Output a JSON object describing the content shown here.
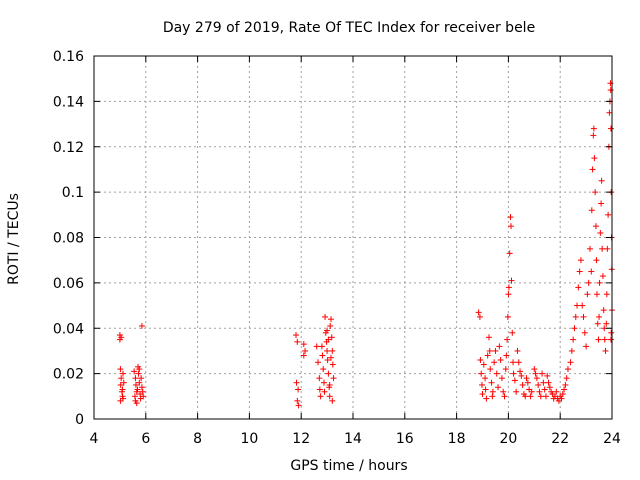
{
  "chart_data": {
    "type": "scatter",
    "title": "Day 279 of 2019, Rate Of TEC Index for receiver bele",
    "xlabel": "GPS time / hours",
    "ylabel": "ROTI / TECUs",
    "xlim": [
      4,
      24
    ],
    "ylim": [
      0,
      0.16
    ],
    "grid": true,
    "marker": "+",
    "marker_color": "#ff0000",
    "xticks": [
      4,
      6,
      8,
      10,
      12,
      14,
      16,
      18,
      20,
      22,
      24
    ],
    "xtick_labels": [
      "4",
      "6",
      "8",
      "10",
      "12",
      "14",
      "16",
      "18",
      "20",
      "22",
      "24"
    ],
    "yticks": [
      0,
      0.02,
      0.04,
      0.06,
      0.08,
      0.1,
      0.12,
      0.14,
      0.16
    ],
    "ytick_labels": [
      "0",
      "0.02",
      "0.04",
      "0.06",
      "0.08",
      "0.1",
      "0.12",
      "0.14",
      "0.16"
    ],
    "series": [
      {
        "name": "ROTI",
        "points": [
          [
            5.0,
            0.037
          ],
          [
            5.0,
            0.035
          ],
          [
            5.02,
            0.022
          ],
          [
            5.05,
            0.018
          ],
          [
            5.03,
            0.015
          ],
          [
            5.08,
            0.012
          ],
          [
            5.1,
            0.01
          ],
          [
            5.02,
            0.008
          ],
          [
            5.12,
            0.02
          ],
          [
            5.15,
            0.016
          ],
          [
            5.05,
            0.036
          ],
          [
            5.1,
            0.013
          ],
          [
            5.12,
            0.009
          ],
          [
            5.55,
            0.021
          ],
          [
            5.6,
            0.018
          ],
          [
            5.62,
            0.015
          ],
          [
            5.65,
            0.012
          ],
          [
            5.58,
            0.01
          ],
          [
            5.7,
            0.023
          ],
          [
            5.72,
            0.02
          ],
          [
            5.75,
            0.016
          ],
          [
            5.68,
            0.013
          ],
          [
            5.78,
            0.011
          ],
          [
            5.8,
            0.009
          ],
          [
            5.65,
            0.007
          ],
          [
            5.82,
            0.018
          ],
          [
            5.85,
            0.014
          ],
          [
            5.88,
            0.012
          ],
          [
            5.9,
            0.01
          ],
          [
            5.85,
            0.041
          ],
          [
            5.75,
            0.022
          ],
          [
            5.6,
            0.008
          ],
          [
            11.8,
            0.037
          ],
          [
            11.85,
            0.034
          ],
          [
            11.82,
            0.016
          ],
          [
            11.88,
            0.013
          ],
          [
            11.85,
            0.008
          ],
          [
            11.9,
            0.006
          ],
          [
            12.1,
            0.033
          ],
          [
            12.15,
            0.03
          ],
          [
            12.1,
            0.028
          ],
          [
            12.6,
            0.032
          ],
          [
            12.65,
            0.025
          ],
          [
            12.7,
            0.018
          ],
          [
            12.72,
            0.013
          ],
          [
            12.75,
            0.01
          ],
          [
            12.8,
            0.032
          ],
          [
            12.82,
            0.028
          ],
          [
            12.85,
            0.022
          ],
          [
            12.88,
            0.016
          ],
          [
            12.9,
            0.012
          ],
          [
            12.92,
            0.045
          ],
          [
            12.95,
            0.038
          ],
          [
            12.98,
            0.034
          ],
          [
            13.0,
            0.03
          ],
          [
            13.02,
            0.026
          ],
          [
            13.05,
            0.02
          ],
          [
            13.08,
            0.014
          ],
          [
            13.1,
            0.01
          ],
          [
            13.12,
            0.041
          ],
          [
            13.15,
            0.044
          ],
          [
            13.18,
            0.036
          ],
          [
            13.2,
            0.03
          ],
          [
            13.22,
            0.024
          ],
          [
            13.25,
            0.018
          ],
          [
            13.2,
            0.008
          ],
          [
            13.1,
            0.015
          ],
          [
            13.15,
            0.027
          ],
          [
            13.05,
            0.035
          ],
          [
            13.0,
            0.039
          ],
          [
            18.85,
            0.047
          ],
          [
            18.9,
            0.045
          ],
          [
            18.92,
            0.026
          ],
          [
            18.95,
            0.02
          ],
          [
            18.98,
            0.015
          ],
          [
            19.0,
            0.011
          ],
          [
            19.05,
            0.024
          ],
          [
            19.1,
            0.018
          ],
          [
            19.12,
            0.013
          ],
          [
            19.15,
            0.009
          ],
          [
            19.2,
            0.028
          ],
          [
            19.25,
            0.036
          ],
          [
            19.28,
            0.03
          ],
          [
            19.3,
            0.022
          ],
          [
            19.35,
            0.016
          ],
          [
            19.38,
            0.01
          ],
          [
            19.4,
            0.012
          ],
          [
            19.45,
            0.025
          ],
          [
            19.5,
            0.03
          ],
          [
            19.55,
            0.02
          ],
          [
            19.6,
            0.014
          ],
          [
            19.65,
            0.032
          ],
          [
            19.7,
            0.026
          ],
          [
            19.75,
            0.018
          ],
          [
            19.8,
            0.012
          ],
          [
            19.85,
            0.01
          ],
          [
            19.9,
            0.022
          ],
          [
            19.92,
            0.028
          ],
          [
            19.95,
            0.035
          ],
          [
            19.98,
            0.045
          ],
          [
            20.0,
            0.055
          ],
          [
            20.02,
            0.058
          ],
          [
            20.05,
            0.073
          ],
          [
            20.08,
            0.089
          ],
          [
            20.1,
            0.085
          ],
          [
            20.12,
            0.061
          ],
          [
            20.15,
            0.038
          ],
          [
            20.18,
            0.025
          ],
          [
            20.2,
            0.02
          ],
          [
            20.25,
            0.017
          ],
          [
            20.3,
            0.012
          ],
          [
            20.35,
            0.03
          ],
          [
            20.4,
            0.025
          ],
          [
            20.45,
            0.021
          ],
          [
            20.5,
            0.019
          ],
          [
            20.55,
            0.015
          ],
          [
            20.6,
            0.011
          ],
          [
            20.65,
            0.01
          ],
          [
            20.7,
            0.018
          ],
          [
            20.75,
            0.016
          ],
          [
            20.8,
            0.013
          ],
          [
            20.85,
            0.01
          ],
          [
            20.9,
            0.012
          ],
          [
            21.0,
            0.022
          ],
          [
            21.05,
            0.02
          ],
          [
            21.1,
            0.018
          ],
          [
            21.15,
            0.015
          ],
          [
            21.2,
            0.012
          ],
          [
            21.25,
            0.01
          ],
          [
            21.3,
            0.02
          ],
          [
            21.35,
            0.016
          ],
          [
            21.4,
            0.013
          ],
          [
            21.45,
            0.01
          ],
          [
            21.5,
            0.019
          ],
          [
            21.55,
            0.016
          ],
          [
            21.6,
            0.014
          ],
          [
            21.65,
            0.012
          ],
          [
            21.7,
            0.011
          ],
          [
            21.75,
            0.009
          ],
          [
            21.8,
            0.01
          ],
          [
            21.85,
            0.012
          ],
          [
            21.9,
            0.009
          ],
          [
            21.95,
            0.008
          ],
          [
            22.0,
            0.01
          ],
          [
            22.05,
            0.009
          ],
          [
            22.1,
            0.011
          ],
          [
            22.15,
            0.013
          ],
          [
            22.2,
            0.015
          ],
          [
            22.25,
            0.018
          ],
          [
            22.3,
            0.022
          ],
          [
            22.4,
            0.025
          ],
          [
            22.45,
            0.03
          ],
          [
            22.5,
            0.035
          ],
          [
            22.55,
            0.04
          ],
          [
            22.6,
            0.045
          ],
          [
            22.65,
            0.05
          ],
          [
            22.7,
            0.058
          ],
          [
            22.75,
            0.065
          ],
          [
            22.8,
            0.07
          ],
          [
            22.85,
            0.05
          ],
          [
            22.9,
            0.045
          ],
          [
            22.95,
            0.038
          ],
          [
            23.0,
            0.032
          ],
          [
            23.05,
            0.055
          ],
          [
            23.1,
            0.06
          ],
          [
            23.15,
            0.075
          ],
          [
            23.2,
            0.065
          ],
          [
            23.22,
            0.092
          ],
          [
            23.25,
            0.11
          ],
          [
            23.28,
            0.125
          ],
          [
            23.3,
            0.128
          ],
          [
            23.32,
            0.115
          ],
          [
            23.35,
            0.1
          ],
          [
            23.38,
            0.085
          ],
          [
            23.4,
            0.07
          ],
          [
            23.42,
            0.055
          ],
          [
            23.45,
            0.042
          ],
          [
            23.48,
            0.035
          ],
          [
            23.5,
            0.045
          ],
          [
            23.52,
            0.06
          ],
          [
            23.55,
            0.082
          ],
          [
            23.58,
            0.095
          ],
          [
            23.6,
            0.105
          ],
          [
            23.62,
            0.075
          ],
          [
            23.65,
            0.063
          ],
          [
            23.68,
            0.048
          ],
          [
            23.7,
            0.04
          ],
          [
            23.72,
            0.035
          ],
          [
            23.75,
            0.03
          ],
          [
            23.78,
            0.042
          ],
          [
            23.8,
            0.055
          ],
          [
            23.82,
            0.075
          ],
          [
            23.85,
            0.09
          ],
          [
            23.88,
            0.12
          ],
          [
            23.9,
            0.135
          ],
          [
            23.92,
            0.14
          ],
          [
            23.94,
            0.148
          ],
          [
            23.95,
            0.145
          ],
          [
            23.96,
            0.128
          ],
          [
            23.97,
            0.1
          ],
          [
            23.98,
            0.08
          ],
          [
            23.99,
            0.066
          ],
          [
            24.0,
            0.048
          ],
          [
            23.97,
            0.038
          ],
          [
            23.96,
            0.035
          ]
        ]
      }
    ]
  }
}
